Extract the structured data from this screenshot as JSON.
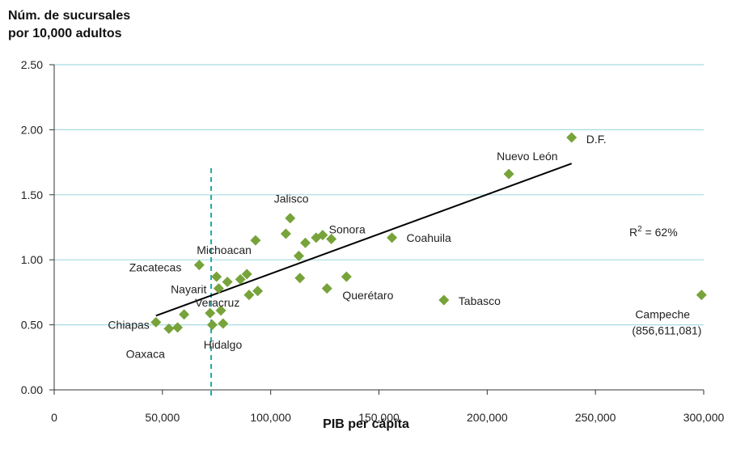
{
  "chart_data": {
    "type": "scatter",
    "ylabel_lines": [
      "Núm. de sucursales",
      "por 10,000 adultos"
    ],
    "xlabel": "PIB per cápita",
    "xlim": [
      0,
      300000
    ],
    "ylim": [
      0,
      2.5
    ],
    "x_ticks": [
      0,
      50000,
      100000,
      150000,
      200000,
      250000,
      300000
    ],
    "x_tick_labels": [
      "0",
      "50,000",
      "100,000",
      "150,000",
      "200,000",
      "250,000",
      "300,000"
    ],
    "y_ticks": [
      0,
      0.5,
      1.0,
      1.5,
      2.0,
      2.5
    ],
    "y_tick_labels": [
      "0.00",
      "0.50",
      "1.00",
      "1.50",
      "2.00",
      "2.50"
    ],
    "grid": "horizontal",
    "colors": {
      "points": "#77A33A",
      "grid": "#A8DCE0",
      "trend": "#000000",
      "reference": "#20A8A8"
    },
    "points": [
      {
        "x": 47000,
        "y": 0.52,
        "label": "Chiapas"
      },
      {
        "x": 53000,
        "y": 0.47,
        "label": "Oaxaca"
      },
      {
        "x": 57000,
        "y": 0.48
      },
      {
        "x": 60000,
        "y": 0.58
      },
      {
        "x": 67000,
        "y": 0.96,
        "label": "Zacatecas"
      },
      {
        "x": 72000,
        "y": 0.59
      },
      {
        "x": 73000,
        "y": 0.5
      },
      {
        "x": 75000,
        "y": 0.87
      },
      {
        "x": 76000,
        "y": 0.78,
        "label": "Nayarit"
      },
      {
        "x": 77000,
        "y": 0.61,
        "label": "Veracruz"
      },
      {
        "x": 78000,
        "y": 0.51,
        "label": "Hidalgo"
      },
      {
        "x": 80000,
        "y": 0.83
      },
      {
        "x": 86000,
        "y": 0.85
      },
      {
        "x": 89000,
        "y": 0.89,
        "label": "Michoacan"
      },
      {
        "x": 90000,
        "y": 0.73
      },
      {
        "x": 93000,
        "y": 1.15
      },
      {
        "x": 94000,
        "y": 0.76
      },
      {
        "x": 107000,
        "y": 1.2
      },
      {
        "x": 109000,
        "y": 1.32,
        "label": "Jalisco"
      },
      {
        "x": 113000,
        "y": 1.03
      },
      {
        "x": 113500,
        "y": 0.86
      },
      {
        "x": 116000,
        "y": 1.13
      },
      {
        "x": 121000,
        "y": 1.17
      },
      {
        "x": 124000,
        "y": 1.19
      },
      {
        "x": 126000,
        "y": 0.78
      },
      {
        "x": 128000,
        "y": 1.16,
        "label": "Sonora"
      },
      {
        "x": 135000,
        "y": 0.87,
        "label": "Querétaro"
      },
      {
        "x": 156000,
        "y": 1.17,
        "label": "Coahuila"
      },
      {
        "x": 180000,
        "y": 0.69,
        "label": "Tabasco"
      },
      {
        "x": 210000,
        "y": 1.66,
        "label": "Nuevo León"
      },
      {
        "x": 239000,
        "y": 1.94,
        "label": "D.F."
      },
      {
        "x": 299000,
        "y": 0.73,
        "label": "Campeche",
        "label2": "(856,611,081)"
      }
    ],
    "trendline": {
      "x": [
        47000,
        239000
      ],
      "y": [
        0.57,
        1.74
      ]
    },
    "reference_line_x": 72500,
    "r2_annotation": {
      "base": "R",
      "superscript": "2",
      "rest": " = 62%"
    }
  }
}
